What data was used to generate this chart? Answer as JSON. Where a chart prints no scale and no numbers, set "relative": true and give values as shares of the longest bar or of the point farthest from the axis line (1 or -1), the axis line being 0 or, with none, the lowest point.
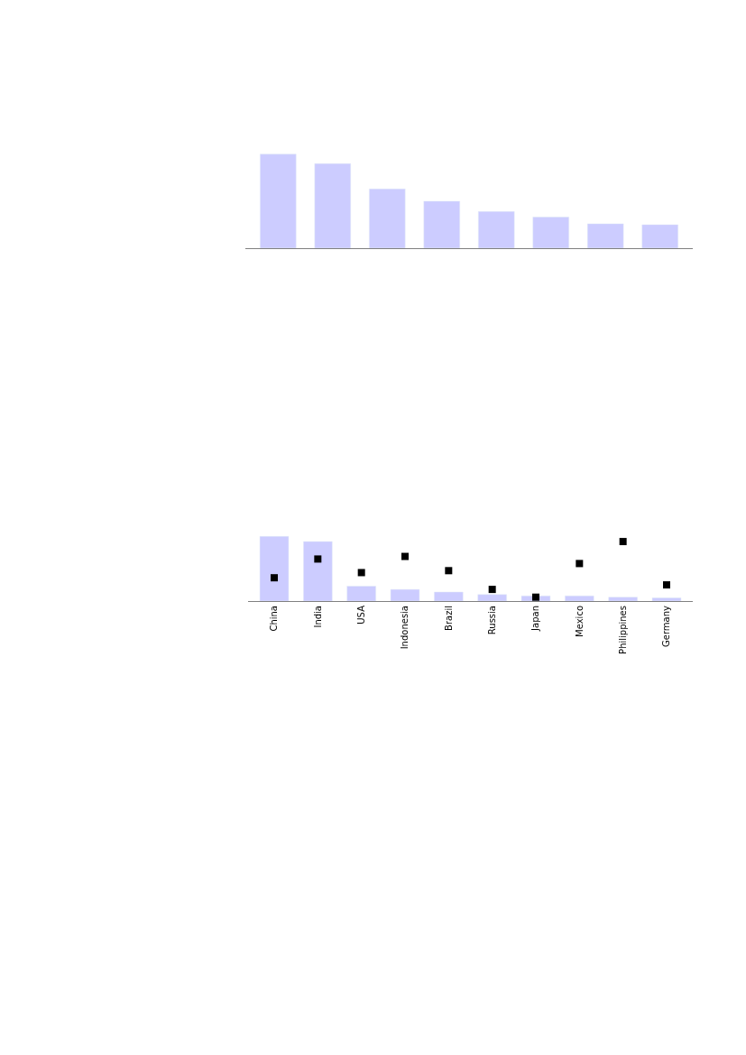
{
  "chart_data": [
    {
      "type": "bar",
      "relative": true,
      "categories": [
        null,
        null,
        null,
        null,
        null,
        null,
        null,
        null
      ],
      "series": [
        {
          "color": "#ccccff",
          "values": [
            1,
            0.9,
            0.63,
            0.5,
            0.39,
            0.33,
            0.26,
            0.25
          ]
        }
      ]
    },
    {
      "type": "bar",
      "relative": true,
      "categories": [
        "China",
        "India",
        "USA",
        "Indonesia",
        "Brazil",
        "Russia",
        "Japan",
        "Mexico",
        "Philippines",
        "Germany"
      ],
      "series": [
        {
          "type": "bar",
          "color": "#ccccff",
          "values": [
            1,
            0.92,
            0.23,
            0.18,
            0.14,
            0.1,
            0.08,
            0.08,
            0.06,
            0.05
          ]
        },
        {
          "type": "scatter",
          "color": "#000000",
          "marker": "square",
          "values": [
            0.36,
            0.65,
            0.44,
            0.69,
            0.47,
            0.18,
            0.06,
            0.58,
            0.92,
            0.25
          ]
        }
      ]
    }
  ]
}
